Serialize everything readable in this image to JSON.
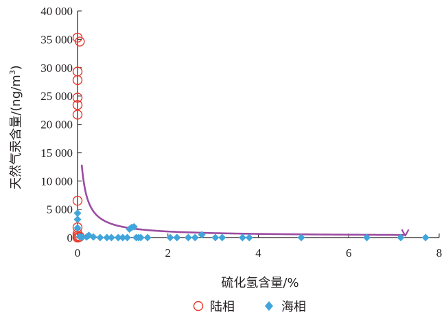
{
  "chart_data": {
    "type": "scatter",
    "title": "",
    "xlabel": "硫化氢含量/%",
    "ylabel_main": "天然气汞含量/(ng/m",
    "ylabel_sup": "3",
    "ylabel_close": ")",
    "xlim": [
      0,
      8
    ],
    "ylim": [
      0,
      40000
    ],
    "x_ticks": [
      0,
      2,
      4,
      6,
      8
    ],
    "x_tick_labels": [
      "0",
      "2",
      "4",
      "6",
      "8"
    ],
    "y_ticks": [
      0,
      5000,
      10000,
      15000,
      20000,
      25000,
      30000,
      35000,
      40000
    ],
    "y_tick_labels": [
      "0",
      "5 000",
      "10 000",
      "15 000",
      "20 000",
      "25 000",
      "30 000",
      "35 000",
      "40 000"
    ],
    "grid": false,
    "legend_position": "bottom",
    "colors": {
      "terrestrial": "#e8392c",
      "marine": "#41a5dc",
      "trend": "#9b4ba0",
      "axis": "#231f20"
    },
    "series": [
      {
        "name": "陆相",
        "marker": "open-circle",
        "points": [
          [
            0.0,
            35300
          ],
          [
            0.05,
            34600
          ],
          [
            0.0,
            29300
          ],
          [
            0.0,
            27800
          ],
          [
            0.0,
            24700
          ],
          [
            0.0,
            23400
          ],
          [
            0.0,
            21700
          ],
          [
            0.0,
            6500
          ],
          [
            0.0,
            1800
          ],
          [
            0.0,
            700
          ],
          [
            0.0,
            300
          ],
          [
            0.02,
            100
          ],
          [
            0.05,
            150
          ],
          [
            0.0,
            0
          ]
        ]
      },
      {
        "name": "海相",
        "marker": "filled-diamond",
        "points": [
          [
            0.0,
            4300
          ],
          [
            0.0,
            3200
          ],
          [
            0.0,
            1700
          ],
          [
            0.05,
            200
          ],
          [
            0.1,
            50
          ],
          [
            0.2,
            100
          ],
          [
            0.25,
            400
          ],
          [
            0.35,
            100
          ],
          [
            0.5,
            0
          ],
          [
            0.65,
            0
          ],
          [
            0.75,
            0
          ],
          [
            0.9,
            0
          ],
          [
            1.0,
            0
          ],
          [
            1.1,
            0
          ],
          [
            1.15,
            1500
          ],
          [
            1.2,
            1800
          ],
          [
            1.25,
            1900
          ],
          [
            1.3,
            0
          ],
          [
            1.35,
            0
          ],
          [
            1.4,
            0
          ],
          [
            1.55,
            0
          ],
          [
            2.05,
            0
          ],
          [
            2.2,
            0
          ],
          [
            2.45,
            0
          ],
          [
            2.6,
            0
          ],
          [
            2.75,
            500
          ],
          [
            3.05,
            0
          ],
          [
            3.2,
            0
          ],
          [
            3.65,
            0
          ],
          [
            3.8,
            0
          ],
          [
            4.95,
            0
          ],
          [
            6.4,
            0
          ],
          [
            7.15,
            0
          ],
          [
            7.7,
            0
          ]
        ]
      }
    ],
    "trend_curve": {
      "form": "y = a / (x + b) + c",
      "a": 1750,
      "b": 0.045,
      "c": 220,
      "x_range": [
        0.095,
        7.25
      ],
      "arrow_end": [
        7.25,
        450
      ]
    }
  },
  "legend": {
    "items": [
      {
        "label": "陆相",
        "marker": "open-circle"
      },
      {
        "label": "海相",
        "marker": "filled-diamond"
      }
    ]
  }
}
